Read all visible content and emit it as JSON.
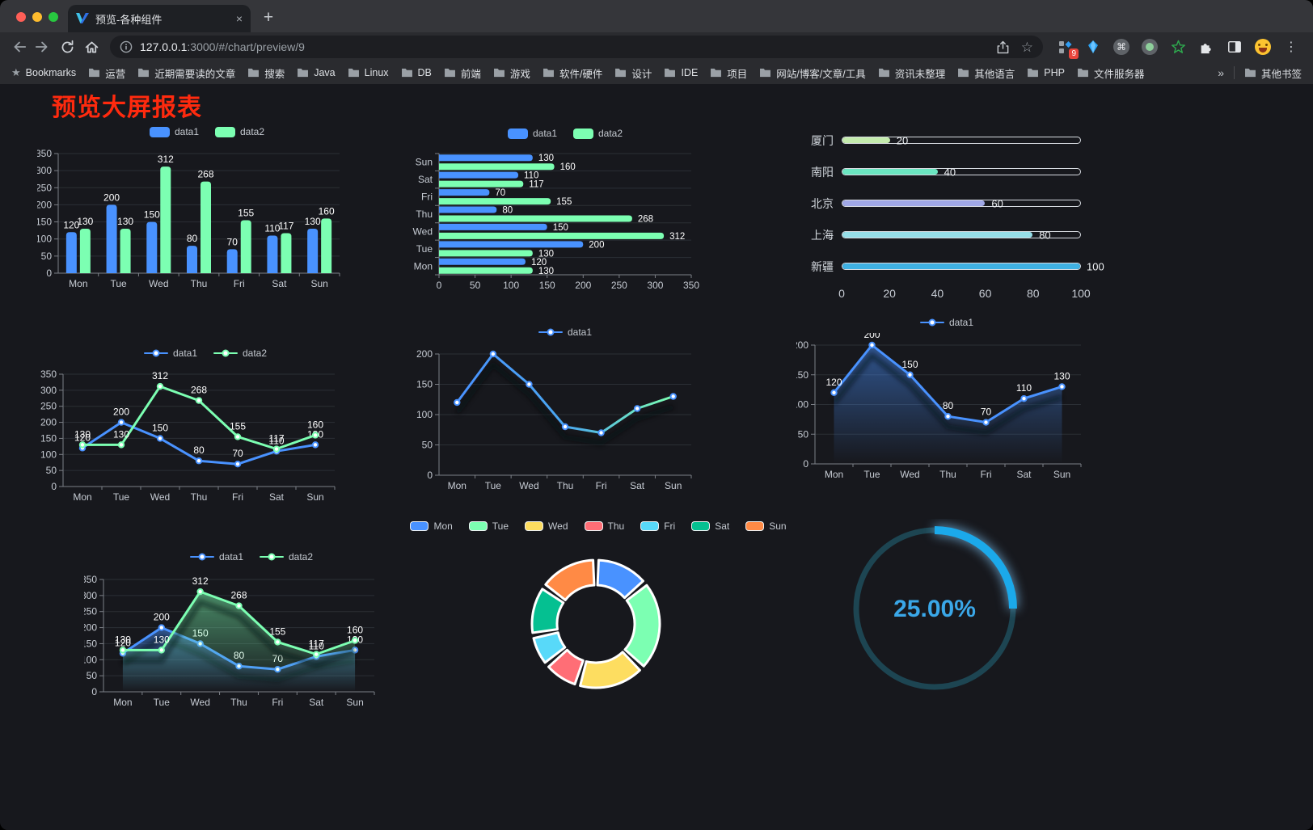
{
  "browser": {
    "tab_title": "预览-各种组件",
    "tab_close_icon": "×",
    "new_tab_icon": "+",
    "url_host": "127.0.0.1",
    "url_path": ":3000/#/chart/preview/9",
    "extension_badge": "9",
    "bookmarks": {
      "label": "Bookmarks",
      "folders": [
        "运营",
        "近期需要读的文章",
        "搜索",
        "Java",
        "Linux",
        "DB",
        "前端",
        "游戏",
        "软件/硬件",
        "设计",
        "IDE",
        "项目",
        "网站/博客/文章/工具",
        "资讯未整理",
        "其他语言",
        "PHP",
        "文件服务器"
      ],
      "overflow_icon": "»",
      "other_bookmarks": "其他书签"
    }
  },
  "page": {
    "title": "预览大屏报表"
  },
  "chart_data": [
    {
      "id": "grouped-bar",
      "type": "bar",
      "categories": [
        "Mon",
        "Tue",
        "Wed",
        "Thu",
        "Fri",
        "Sat",
        "Sun"
      ],
      "series": [
        {
          "name": "data1",
          "color": "#4992ff",
          "values": [
            120,
            200,
            150,
            80,
            70,
            110,
            130
          ]
        },
        {
          "name": "data2",
          "color": "#7cffb2",
          "values": [
            130,
            130,
            312,
            268,
            155,
            117,
            160
          ]
        }
      ],
      "ylim": [
        0,
        350
      ],
      "ytick": 50,
      "show_labels": true,
      "legend_position": "top",
      "grid": true
    },
    {
      "id": "grouped-horizontal-bar",
      "type": "hbar",
      "categories": [
        "Mon",
        "Tue",
        "Wed",
        "Thu",
        "Fri",
        "Sat",
        "Sun"
      ],
      "series": [
        {
          "name": "data1",
          "color": "#4992ff",
          "values": [
            120,
            200,
            150,
            80,
            70,
            110,
            130
          ]
        },
        {
          "name": "data2",
          "color": "#7cffb2",
          "values": [
            130,
            130,
            312,
            268,
            155,
            117,
            160
          ]
        }
      ],
      "xlim": [
        0,
        350
      ],
      "xtick": 50,
      "show_labels": true,
      "legend_position": "top",
      "grid": true
    },
    {
      "id": "progress-bars",
      "type": "progress",
      "items": [
        {
          "label": "厦门",
          "value": 20,
          "color": "#c4ebad"
        },
        {
          "label": "南阳",
          "value": 40,
          "color": "#6be6c1"
        },
        {
          "label": "北京",
          "value": 60,
          "color": "#a0a7e6"
        },
        {
          "label": "上海",
          "value": 80,
          "color": "#96dee8"
        },
        {
          "label": "新疆",
          "value": 100,
          "color": "#3fb1e3"
        }
      ],
      "xlim": [
        0,
        100
      ],
      "xticks": [
        0,
        20,
        40,
        60,
        80,
        100
      ]
    },
    {
      "id": "two-series-line",
      "type": "line",
      "categories": [
        "Mon",
        "Tue",
        "Wed",
        "Thu",
        "Fri",
        "Sat",
        "Sun"
      ],
      "series": [
        {
          "name": "data1",
          "color": "#4992ff",
          "values": [
            120,
            200,
            150,
            80,
            70,
            110,
            130
          ]
        },
        {
          "name": "data2",
          "color": "#7cffb2",
          "values": [
            130,
            130,
            312,
            268,
            155,
            117,
            160
          ]
        }
      ],
      "ylim": [
        0,
        350
      ],
      "ytick": 50,
      "show_labels": true,
      "legend_position": "top",
      "grid": true
    },
    {
      "id": "gradient-line",
      "type": "line",
      "categories": [
        "Mon",
        "Tue",
        "Wed",
        "Thu",
        "Fri",
        "Sat",
        "Sun"
      ],
      "series": [
        {
          "name": "data1",
          "gradient": [
            "#4992ff",
            "#4aa7f0",
            "#7cffb2"
          ],
          "marker_color": "#4992ff",
          "values": [
            120,
            200,
            150,
            80,
            70,
            110,
            130
          ]
        }
      ],
      "ylim": [
        0,
        200
      ],
      "ytick": 50,
      "show_labels": false,
      "shadow": true,
      "legend_position": "top",
      "grid": true
    },
    {
      "id": "area-line",
      "type": "line",
      "categories": [
        "Mon",
        "Tue",
        "Wed",
        "Thu",
        "Fri",
        "Sat",
        "Sun"
      ],
      "series": [
        {
          "name": "data1",
          "color": "#4992ff",
          "area": true,
          "values": [
            120,
            200,
            150,
            80,
            70,
            110,
            130
          ]
        }
      ],
      "ylim": [
        0,
        200
      ],
      "ytick": 50,
      "show_labels": true,
      "shadow": true,
      "legend_position": "top",
      "grid": true
    },
    {
      "id": "two-series-area",
      "type": "line",
      "categories": [
        "Mon",
        "Tue",
        "Wed",
        "Thu",
        "Fri",
        "Sat",
        "Sun"
      ],
      "series": [
        {
          "name": "data1",
          "color": "#4992ff",
          "area": true,
          "values": [
            120,
            200,
            150,
            80,
            70,
            110,
            130
          ]
        },
        {
          "name": "data2",
          "color": "#7cffb2",
          "area": true,
          "values": [
            130,
            130,
            312,
            268,
            155,
            117,
            160
          ]
        }
      ],
      "ylim": [
        0,
        350
      ],
      "ytick": 50,
      "show_labels": true,
      "shadow": true,
      "legend_position": "top",
      "grid": true
    },
    {
      "id": "donut",
      "type": "donut",
      "categories": [
        "Mon",
        "Tue",
        "Wed",
        "Thu",
        "Fri",
        "Sat",
        "Sun"
      ],
      "values": [
        120,
        200,
        150,
        80,
        70,
        110,
        130
      ],
      "colors": [
        "#4992ff",
        "#7cffb2",
        "#fddd60",
        "#ff6e76",
        "#58d9f9",
        "#05c091",
        "#ff8a45"
      ],
      "legend_position": "top"
    },
    {
      "id": "gauge",
      "type": "gauge",
      "value": 25,
      "label": "25.00%",
      "color": "#1ba9ea",
      "track_color": "#1d4552",
      "text_color": "#3aa7e8"
    }
  ]
}
